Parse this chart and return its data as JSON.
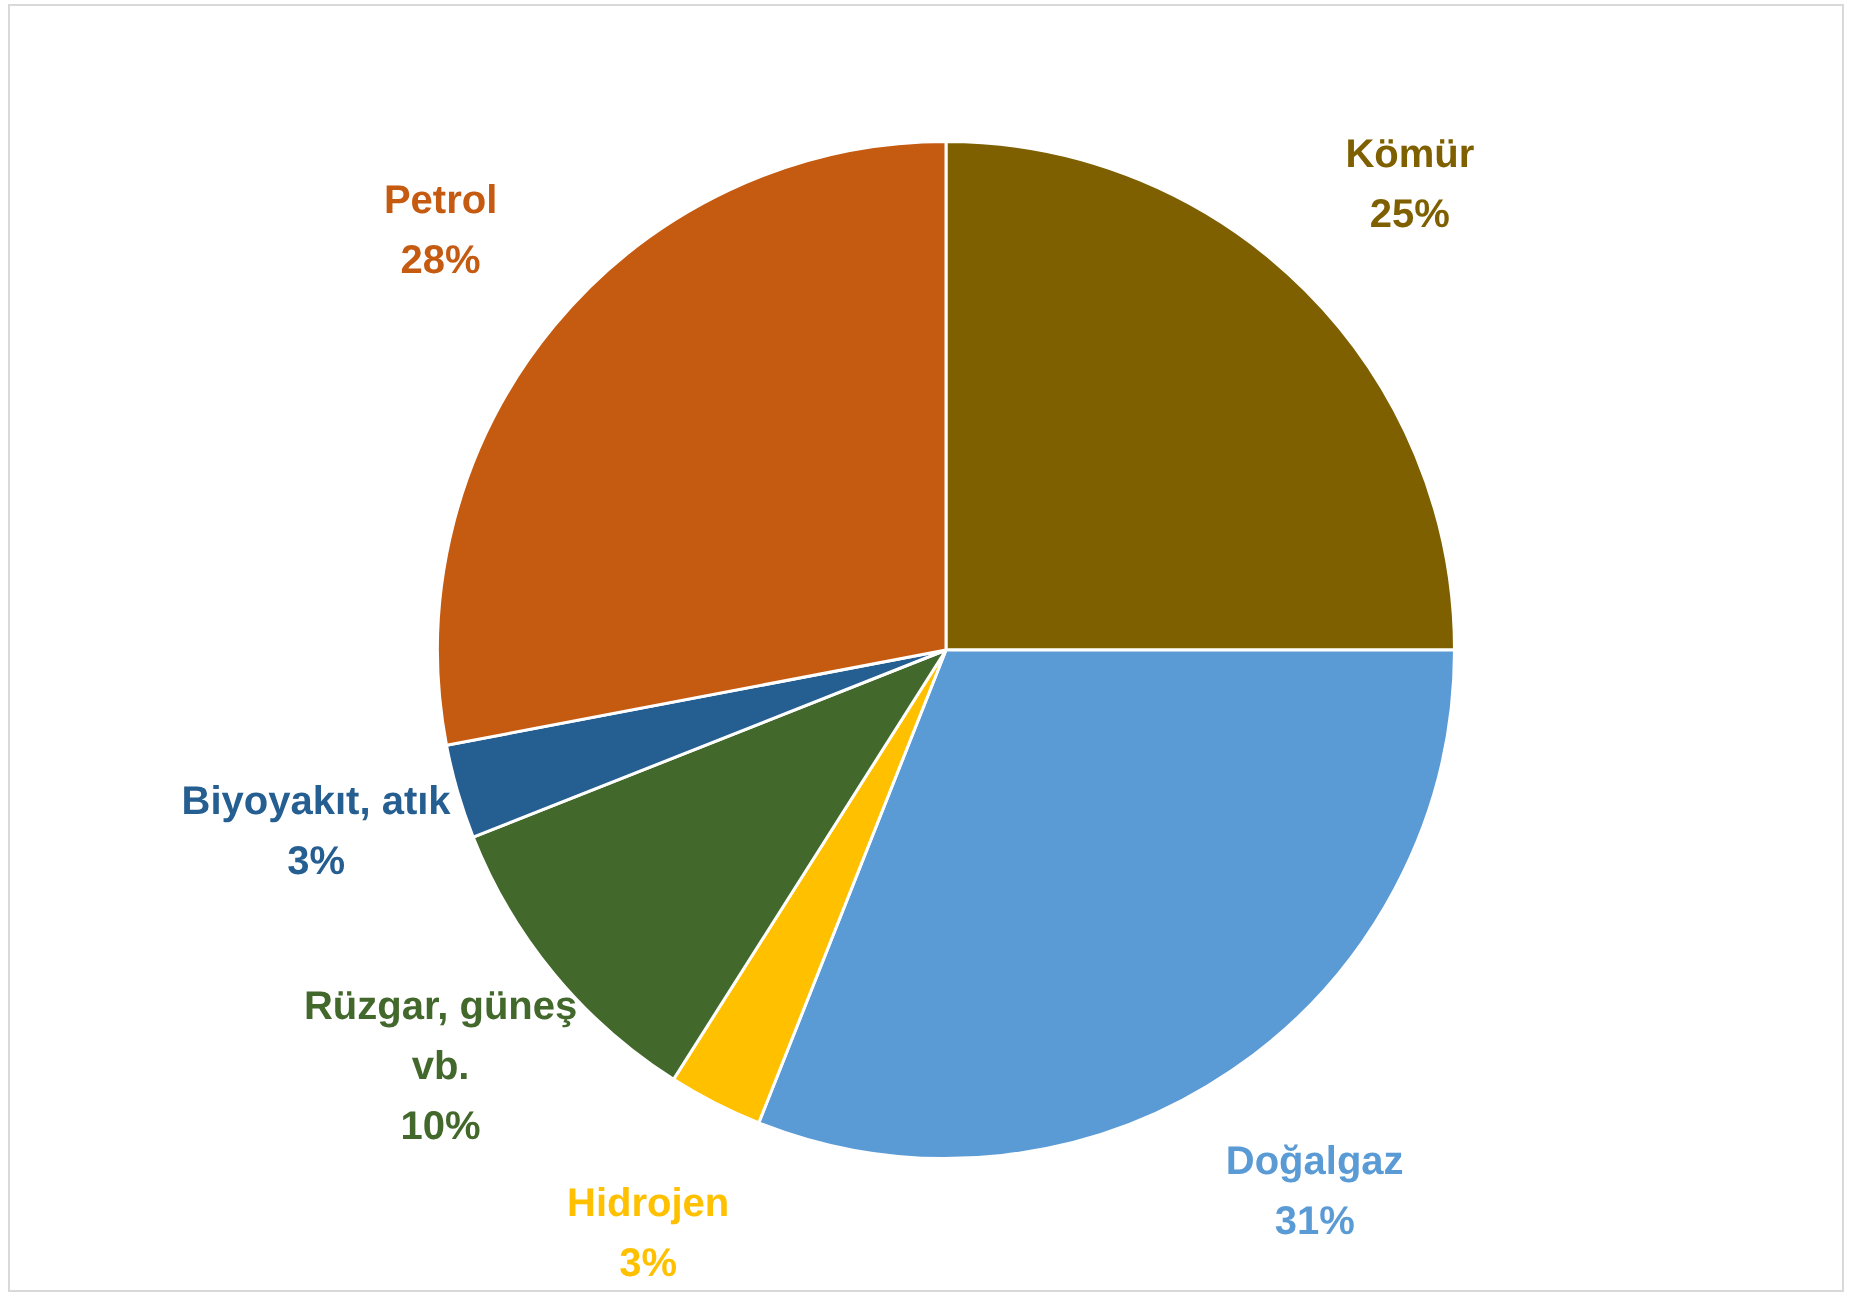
{
  "chart_data": {
    "type": "pie",
    "categories": [
      "Kömür",
      "Doğalgaz",
      "Hidrojen",
      "Rüzgar, güneş vb.",
      "Biyoyakıt, atık",
      "Petrol"
    ],
    "values": [
      25,
      31,
      3,
      10,
      3,
      28
    ],
    "colors": [
      "#7f6000",
      "#5b9bd5",
      "#ffc000",
      "#43682b",
      "#255e91",
      "#c55a11"
    ],
    "value_labels": [
      "25%",
      "31%",
      "3%",
      "10%",
      "3%",
      "28%"
    ],
    "legend": false
  }
}
